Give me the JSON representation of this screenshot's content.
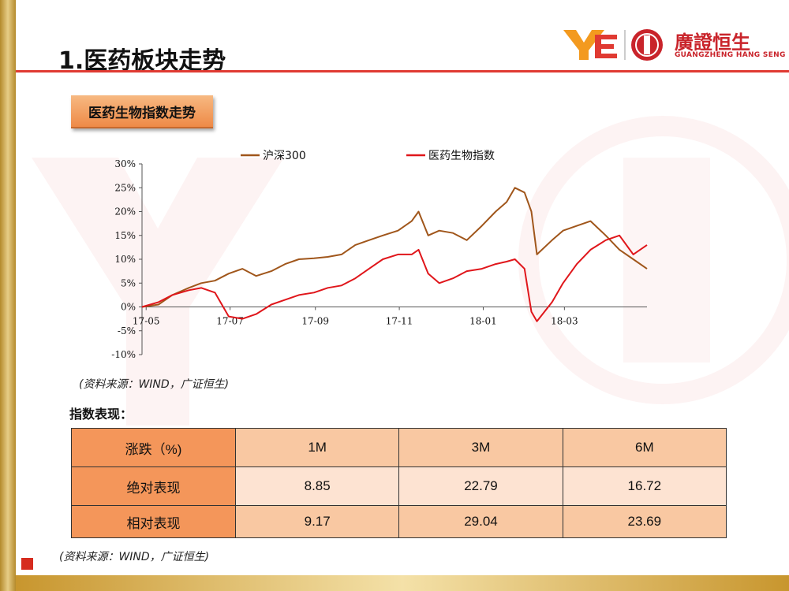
{
  "slide": {
    "title": "1.医药板块走势",
    "subtitle": "医药生物指数走势",
    "logo": {
      "cn": "廣證恒生",
      "en": "GUANGZHENG HANG SENG"
    },
    "source_1": "(资料来源：WIND，广证恒生)",
    "source_2": "(资料来源：WIND，广证恒生)",
    "table_label": "指数表现："
  },
  "colors": {
    "accent_red": "#e03a32",
    "hs300": "#a0561b",
    "pharma": "#e0161b",
    "header_orange": "#f4965a"
  },
  "table": {
    "header": [
      "涨跌（%)",
      "1M",
      "3M",
      "6M"
    ],
    "rows": [
      [
        "绝对表现",
        "8.85",
        "22.79",
        "16.72"
      ],
      [
        "相对表现",
        "9.17",
        "29.04",
        "23.69"
      ]
    ]
  },
  "chart_data": {
    "type": "line",
    "title": "",
    "xlabel": "",
    "ylabel": "",
    "y_unit": "%",
    "ylim": [
      -10,
      30
    ],
    "yticks": [
      "30%",
      "25%",
      "20%",
      "15%",
      "10%",
      "5%",
      "0%",
      "-5%",
      "-10%"
    ],
    "x_tick_labels": [
      "17-05",
      "17-07",
      "17-09",
      "17-11",
      "18-01",
      "18-03"
    ],
    "x_tick_dates": [
      "2017-05",
      "2017-07",
      "2017-09",
      "2017-11",
      "2018-01",
      "2018-03"
    ],
    "x_range": [
      "2017-04-28",
      "2018-04-30"
    ],
    "legend_position": "top",
    "grid": false,
    "series": [
      {
        "name": "沪深300",
        "x": [
          "2017-04-28",
          "2017-05-10",
          "2017-05-20",
          "2017-06-01",
          "2017-06-10",
          "2017-06-20",
          "2017-06-30",
          "2017-07-10",
          "2017-07-20",
          "2017-07-31",
          "2017-08-10",
          "2017-08-20",
          "2017-08-31",
          "2017-09-10",
          "2017-09-20",
          "2017-09-30",
          "2017-10-10",
          "2017-10-20",
          "2017-10-31",
          "2017-11-10",
          "2017-11-15",
          "2017-11-22",
          "2017-11-30",
          "2017-12-10",
          "2017-12-20",
          "2017-12-31",
          "2018-01-10",
          "2018-01-18",
          "2018-01-24",
          "2018-01-31",
          "2018-02-05",
          "2018-02-09",
          "2018-02-20",
          "2018-02-28",
          "2018-03-10",
          "2018-03-20",
          "2018-03-31",
          "2018-04-10",
          "2018-04-20",
          "2018-04-30"
        ],
        "values": [
          0,
          0.5,
          2.5,
          4,
          5,
          5.5,
          7,
          8,
          6.5,
          7.5,
          9,
          10,
          10.2,
          10.5,
          11,
          13,
          14,
          15,
          16,
          18,
          20,
          15,
          16,
          15.5,
          14,
          17,
          20,
          22,
          25,
          24,
          20,
          11,
          14,
          16,
          17,
          18,
          15,
          12,
          10,
          8
        ]
      },
      {
        "name": "医药生物指数",
        "x": [
          "2017-04-28",
          "2017-05-10",
          "2017-05-20",
          "2017-06-01",
          "2017-06-10",
          "2017-06-20",
          "2017-06-30",
          "2017-07-10",
          "2017-07-20",
          "2017-07-31",
          "2017-08-10",
          "2017-08-20",
          "2017-08-31",
          "2017-09-10",
          "2017-09-20",
          "2017-09-30",
          "2017-10-10",
          "2017-10-20",
          "2017-10-31",
          "2017-11-10",
          "2017-11-15",
          "2017-11-22",
          "2017-11-30",
          "2017-12-10",
          "2017-12-20",
          "2017-12-31",
          "2018-01-10",
          "2018-01-18",
          "2018-01-24",
          "2018-01-31",
          "2018-02-05",
          "2018-02-09",
          "2018-02-20",
          "2018-02-28",
          "2018-03-10",
          "2018-03-20",
          "2018-03-31",
          "2018-04-10",
          "2018-04-20",
          "2018-04-30"
        ],
        "values": [
          0,
          1,
          2.5,
          3.5,
          4,
          3,
          -2,
          -2.5,
          -1.5,
          0.5,
          1.5,
          2.5,
          3,
          4,
          4.5,
          6,
          8,
          10,
          11,
          11,
          12,
          7,
          5,
          6,
          7.5,
          8,
          9,
          9.5,
          10,
          8,
          -1,
          -3,
          1,
          5,
          9,
          12,
          14,
          15,
          11,
          13
        ]
      }
    ]
  }
}
